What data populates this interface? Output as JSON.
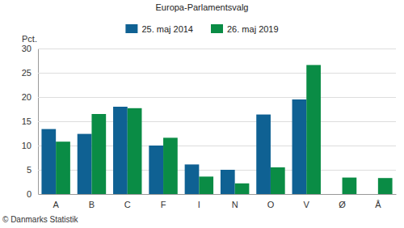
{
  "chart_data": {
    "type": "bar",
    "title": "Europa-Parlamentsvalg",
    "y_label": "Pct.",
    "categories": [
      "A",
      "B",
      "C",
      "F",
      "I",
      "N",
      "O",
      "V",
      "Ø",
      "Å"
    ],
    "series": [
      {
        "name": "25. maj 2014",
        "color": "#0f6193",
        "values": [
          13.4,
          12.4,
          18.0,
          10.0,
          6.1,
          5.0,
          16.4,
          19.5,
          null,
          null
        ]
      },
      {
        "name": "26. maj 2019",
        "color": "#0a8c45",
        "values": [
          10.8,
          16.5,
          17.7,
          11.6,
          3.6,
          2.2,
          5.5,
          26.6,
          3.4,
          3.3
        ]
      }
    ],
    "ylim": [
      0,
      30
    ],
    "yticks": [
      0,
      5,
      10,
      15,
      20,
      25,
      30
    ],
    "grid": true,
    "legend": "top",
    "annotations": [
      "© Danmarks Statistik"
    ]
  }
}
